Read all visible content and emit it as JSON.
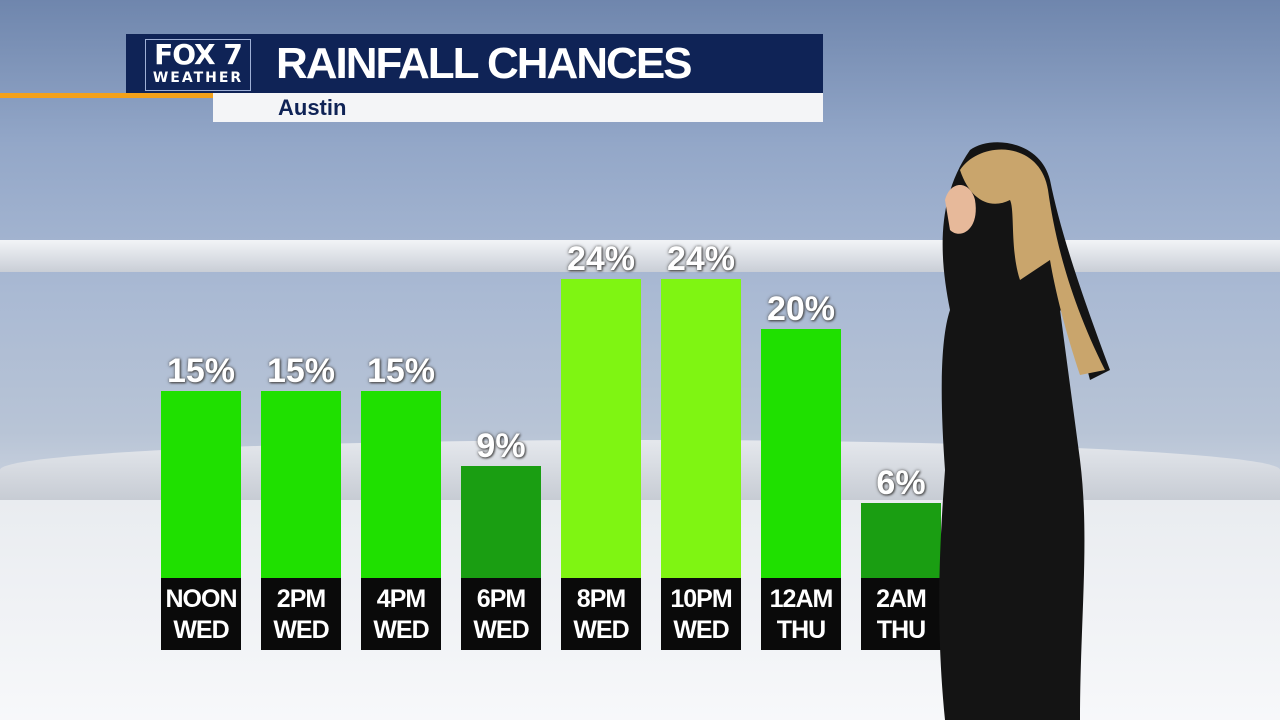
{
  "header": {
    "logo_line1": "FOX 7",
    "logo_line2": "WEATHER",
    "title": "RAINFALL CHANCES",
    "location": "Austin"
  },
  "colors": {
    "header_bg": "#0f2356",
    "accent": "#f3a11a"
  },
  "chart_data": {
    "type": "bar",
    "title": "RAINFALL CHANCES",
    "categories": [
      [
        "NOON",
        "WED"
      ],
      [
        "2PM",
        "WED"
      ],
      [
        "4PM",
        "WED"
      ],
      [
        "6PM",
        "WED"
      ],
      [
        "8PM",
        "WED"
      ],
      [
        "10PM",
        "WED"
      ],
      [
        "12AM",
        "THU"
      ],
      [
        "2AM",
        "THU"
      ]
    ],
    "values": [
      15,
      15,
      15,
      9,
      24,
      24,
      20,
      6
    ],
    "value_labels": [
      "15%",
      "15%",
      "15%",
      "9%",
      "24%",
      "24%",
      "20%",
      "6%"
    ],
    "bar_colors": [
      "#1fe000",
      "#1fe000",
      "#1fe000",
      "#1a9e12",
      "#7ff512",
      "#7ff512",
      "#1fe000",
      "#1a9e12"
    ],
    "unit": "%",
    "ylim": [
      0,
      24
    ],
    "grid": false
  }
}
